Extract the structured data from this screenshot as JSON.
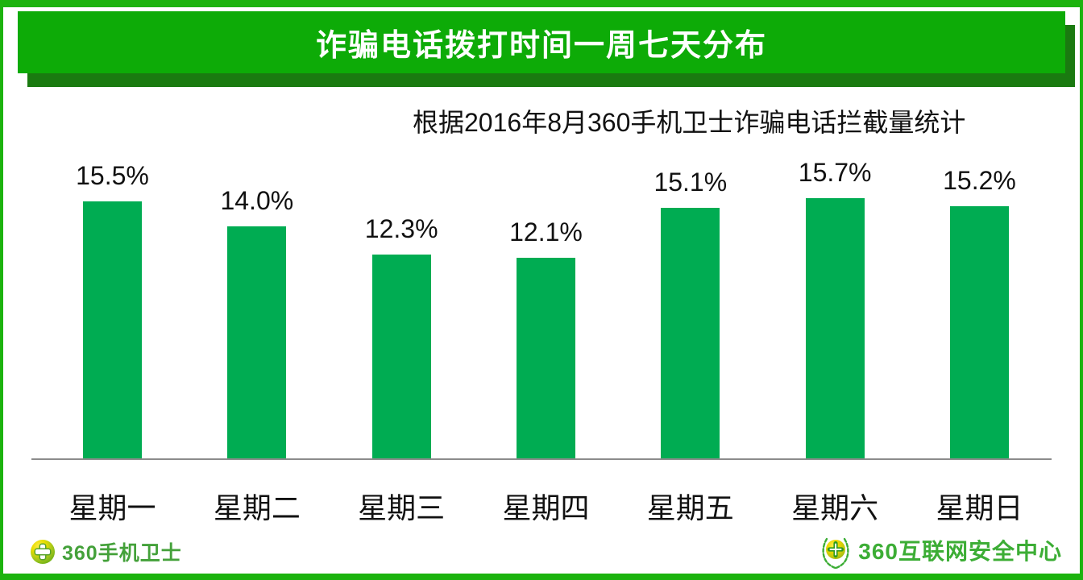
{
  "header": {
    "title": "诈骗电话拨打时间一周七天分布"
  },
  "subtitle": "根据2016年8月360手机卫士诈骗电话拦截量统计",
  "chart_data": {
    "type": "bar",
    "title": "诈骗电话拨打时间一周七天分布",
    "subtitle": "根据2016年8月360手机卫士诈骗电话拦截量统计",
    "categories": [
      "星期一",
      "星期二",
      "星期三",
      "星期四",
      "星期五",
      "星期六",
      "星期日"
    ],
    "values": [
      15.5,
      14.0,
      12.3,
      12.1,
      15.1,
      15.7,
      15.2
    ],
    "value_labels": [
      "15.5%",
      "14.0%",
      "12.3%",
      "12.1%",
      "15.1%",
      "15.7%",
      "15.2%"
    ],
    "xlabel": "",
    "ylabel": "",
    "ylim": [
      0,
      17
    ],
    "grid": false,
    "legend": "none",
    "bar_color": "#00ac52",
    "axis_line_color": "#8c8c8c"
  },
  "colors": {
    "banner_green": "#0dab07",
    "banner_shadow_green": "#1a7a10",
    "frame_green": "#1cb30e",
    "bar_green": "#00ac52",
    "logo_left_green": "#44a13a",
    "logo_right_green": "#3cad35"
  },
  "footer": {
    "left_logo": {
      "icon": "360-mobile-guard-ball-icon",
      "text": "360手机卫士"
    },
    "right_logo": {
      "icon": "360-security-wreath-icon",
      "text": "360互联网安全中心"
    }
  }
}
